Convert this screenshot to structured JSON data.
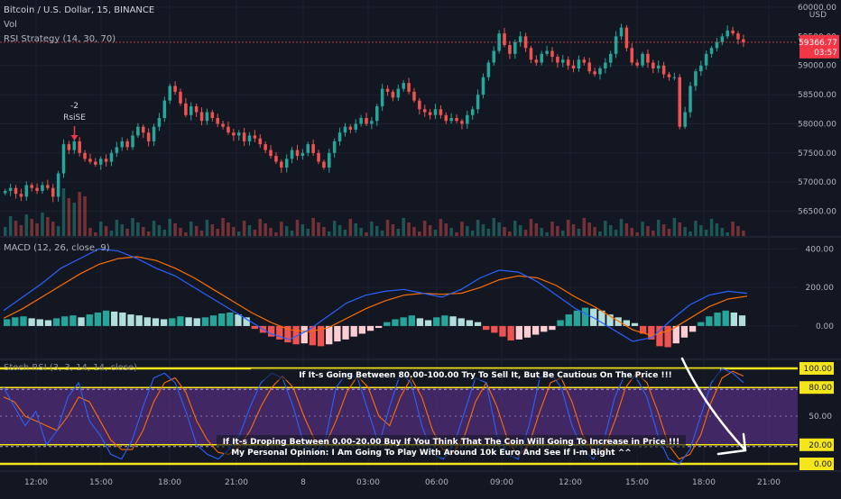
{
  "header": {
    "symbol": "Bitcoin / U.S. Dollar, 15, BINANCE",
    "vol_label": "Vol",
    "strategy_label": "RSI Strategy (14, 30, 70)"
  },
  "macd_panel": {
    "label": "MACD (12, 26, close, 9)"
  },
  "stoch_panel": {
    "label": "Stoch RSI (3, 3, 14, 14, close)"
  },
  "price_axis": {
    "currency": "USD",
    "ticks": [
      "60000.00",
      "59500.00",
      "59000.00",
      "58500.00",
      "58000.00",
      "57500.00",
      "57000.00",
      "56500.00"
    ],
    "last_price": "59366.77",
    "countdown": "03:57",
    "last_price_color": "#f23645"
  },
  "macd_axis": {
    "ticks": [
      "400.00",
      "200.00",
      "0.00"
    ]
  },
  "stoch_axis": {
    "ticks": [
      "100.00",
      "80.00",
      "50.00",
      "20.00",
      "0.00"
    ]
  },
  "time_axis": {
    "labels": [
      "12:00",
      "15:00",
      "18:00",
      "21:00",
      "8",
      "03:00",
      "06:00",
      "09:00",
      "12:00",
      "15:00",
      "18:00",
      "21:00"
    ]
  },
  "signal": {
    "value": "-2",
    "label": "RsiSE"
  },
  "annotations": {
    "sell_note": "If It-s Going Between 80.00-100.00 Try To Sell It, But Be Cautious On The Price !!!",
    "buy_note": "If It-s Droping Between 0.00-20.00 Buy If You Think That The Coin Will Going To Increase in Price !!!",
    "opinion_note": "My Personal Opinion: I Am Going To Play With Around 10k Euro And See If I-m Right ^^"
  },
  "colors": {
    "up": "#26a69a",
    "down": "#ef5350",
    "macd_line": "#2962ff",
    "signal_line": "#ff6d00",
    "stoch_k": "#2962ff",
    "stoch_d": "#ff6d00",
    "band_fill": "#4a2a6e",
    "level_line": "#f5e61c"
  },
  "chart_data": {
    "type": "candlestick",
    "timeframe": "15",
    "y_range": [
      56200,
      60000
    ],
    "close_approx": [
      56850,
      56900,
      56800,
      56750,
      56950,
      56900,
      56850,
      56950,
      56900,
      56750,
      57150,
      57650,
      57550,
      57700,
      57500,
      57400,
      57350,
      57300,
      57400,
      57350,
      57500,
      57600,
      57700,
      57600,
      57800,
      57950,
      57850,
      57700,
      57950,
      58100,
      58400,
      58650,
      58550,
      58350,
      58150,
      58300,
      58200,
      58050,
      58200,
      58100,
      58000,
      57950,
      57850,
      57800,
      57850,
      57700,
      57800,
      57750,
      57650,
      57550,
      57450,
      57350,
      57250,
      57400,
      57550,
      57450,
      57500,
      57650,
      57500,
      57350,
      57250,
      57500,
      57700,
      57850,
      57950,
      57900,
      58000,
      58100,
      58000,
      58050,
      58300,
      58600,
      58550,
      58450,
      58600,
      58700,
      58550,
      58400,
      58250,
      58200,
      58150,
      58250,
      58150,
      58050,
      58100,
      58050,
      58000,
      58150,
      58250,
      58500,
      58800,
      59050,
      59250,
      59550,
      59350,
      59200,
      59400,
      59500,
      59300,
      59100,
      59050,
      59200,
      59250,
      59150,
      59050,
      59100,
      59000,
      58950,
      59100,
      59050,
      58900,
      58850,
      58950,
      59050,
      59200,
      59500,
      59650,
      59300,
      59050,
      59000,
      59200,
      59050,
      58950,
      59000,
      58850,
      58800,
      58800,
      57950,
      58200,
      58650,
      58900,
      59000,
      59200,
      59300,
      59400,
      59500,
      59600,
      59550,
      59450,
      59400
    ]
  },
  "macd_data": {
    "histogram_approx": [
      35,
      45,
      50,
      40,
      35,
      30,
      40,
      50,
      55,
      45,
      60,
      70,
      80,
      75,
      70,
      60,
      55,
      45,
      40,
      35,
      40,
      50,
      45,
      40,
      45,
      55,
      65,
      70,
      60,
      45,
      -15,
      -35,
      -55,
      -70,
      -85,
      -95,
      -90,
      -100,
      -105,
      -95,
      -80,
      -70,
      -55,
      -40,
      -25,
      -10,
      20,
      35,
      45,
      55,
      40,
      30,
      45,
      55,
      50,
      40,
      30,
      20,
      -20,
      -35,
      -55,
      -75,
      -70,
      -60,
      -45,
      -30,
      -20,
      30,
      60,
      80,
      95,
      90,
      80,
      60,
      45,
      30,
      15,
      -40,
      -70,
      -105,
      -110,
      -90,
      -60,
      -30,
      20,
      50,
      70,
      80,
      70,
      55
    ],
    "macd_approx": [
      80,
      150,
      220,
      300,
      350,
      400,
      390,
      350,
      300,
      260,
      200,
      140,
      80,
      20,
      -40,
      -70,
      -20,
      50,
      120,
      160,
      180,
      190,
      170,
      150,
      190,
      250,
      290,
      280,
      230,
      160,
      90,
      40,
      -20,
      -80,
      -60,
      30,
      110,
      160,
      180,
      170
    ],
    "signal_approx": [
      40,
      90,
      150,
      210,
      270,
      320,
      350,
      360,
      340,
      300,
      250,
      190,
      130,
      70,
      20,
      -20,
      -30,
      -10,
      40,
      90,
      130,
      160,
      170,
      165,
      170,
      200,
      240,
      260,
      250,
      210,
      150,
      100,
      40,
      -20,
      -50,
      -20,
      40,
      100,
      140,
      155
    ]
  },
  "stoch_data": {
    "k_approx": [
      80,
      60,
      40,
      55,
      20,
      35,
      70,
      85,
      45,
      30,
      10,
      5,
      25,
      60,
      90,
      95,
      85,
      55,
      20,
      10,
      5,
      15,
      30,
      60,
      85,
      95,
      90,
      60,
      20,
      10,
      25,
      80,
      95,
      90,
      55,
      20,
      60,
      95,
      85,
      40,
      10,
      5,
      20,
      55,
      90,
      85,
      30,
      10,
      5,
      40,
      90,
      95,
      80,
      40,
      15,
      5,
      25,
      70,
      95,
      90,
      70,
      30,
      5,
      0,
      15,
      50,
      85,
      100,
      95,
      85
    ],
    "d_approx": [
      70,
      65,
      50,
      45,
      40,
      35,
      50,
      70,
      65,
      45,
      25,
      15,
      15,
      35,
      65,
      85,
      90,
      75,
      45,
      25,
      12,
      10,
      18,
      35,
      60,
      80,
      92,
      80,
      50,
      25,
      20,
      45,
      75,
      92,
      80,
      50,
      40,
      70,
      90,
      70,
      35,
      15,
      12,
      30,
      65,
      85,
      60,
      25,
      8,
      20,
      55,
      85,
      90,
      65,
      30,
      12,
      15,
      45,
      80,
      95,
      85,
      55,
      20,
      5,
      10,
      30,
      65,
      90,
      97,
      92
    ],
    "levels": [
      100,
      80,
      50,
      20,
      0
    ]
  }
}
